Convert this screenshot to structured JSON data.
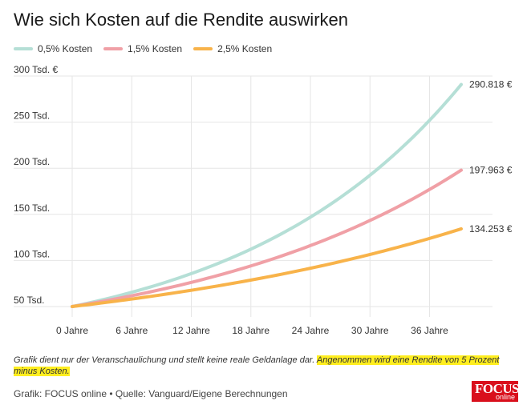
{
  "header": {
    "title": "Wie sich Kosten auf die Rendite auswirken"
  },
  "chart_data": {
    "type": "line",
    "title": "Wie sich Kosten auf die Rendite auswirken",
    "xlabel": "",
    "ylabel": "",
    "x_ticks": [
      "0 Jahre",
      "6 Jahre",
      "12 Jahre",
      "18 Jahre",
      "24 Jahre",
      "30 Jahre",
      "36 Jahre"
    ],
    "x_tick_values": [
      0,
      6,
      12,
      18,
      24,
      30,
      36
    ],
    "xlim": [
      0,
      40
    ],
    "y_ticks": [
      "50 Tsd.",
      "100 Tsd.",
      "150 Tsd.",
      "200 Tsd.",
      "250 Tsd.",
      "300 Tsd. €"
    ],
    "y_tick_values": [
      50000,
      100000,
      150000,
      200000,
      250000,
      300000
    ],
    "ylim": [
      50000,
      300000
    ],
    "grid": true,
    "legend_position": "top-left",
    "start_value": 50000,
    "series": [
      {
        "name": "0,5% Kosten",
        "color": "#b5dfd6",
        "end_value": 290818,
        "end_label": "290.818 €"
      },
      {
        "name": "1,5% Kosten",
        "color": "#f0a0a6",
        "end_value": 197963,
        "end_label": "197.963 €"
      },
      {
        "name": "2,5% Kosten",
        "color": "#f8b34a",
        "end_value": 134253,
        "end_label": "134.253 €"
      }
    ]
  },
  "footer": {
    "note_plain": "Grafik dient nur der Veranschaulichung und stellt keine reale Geldanlage dar. ",
    "note_highlight": "Angenommen wird eine Rendite von 5 Prozent minus Kosten.",
    "source": "Grafik: FOCUS online • Quelle: Vanguard/Eigene Berechnungen",
    "logo_text": "FOCUS",
    "logo_sub": "online"
  }
}
